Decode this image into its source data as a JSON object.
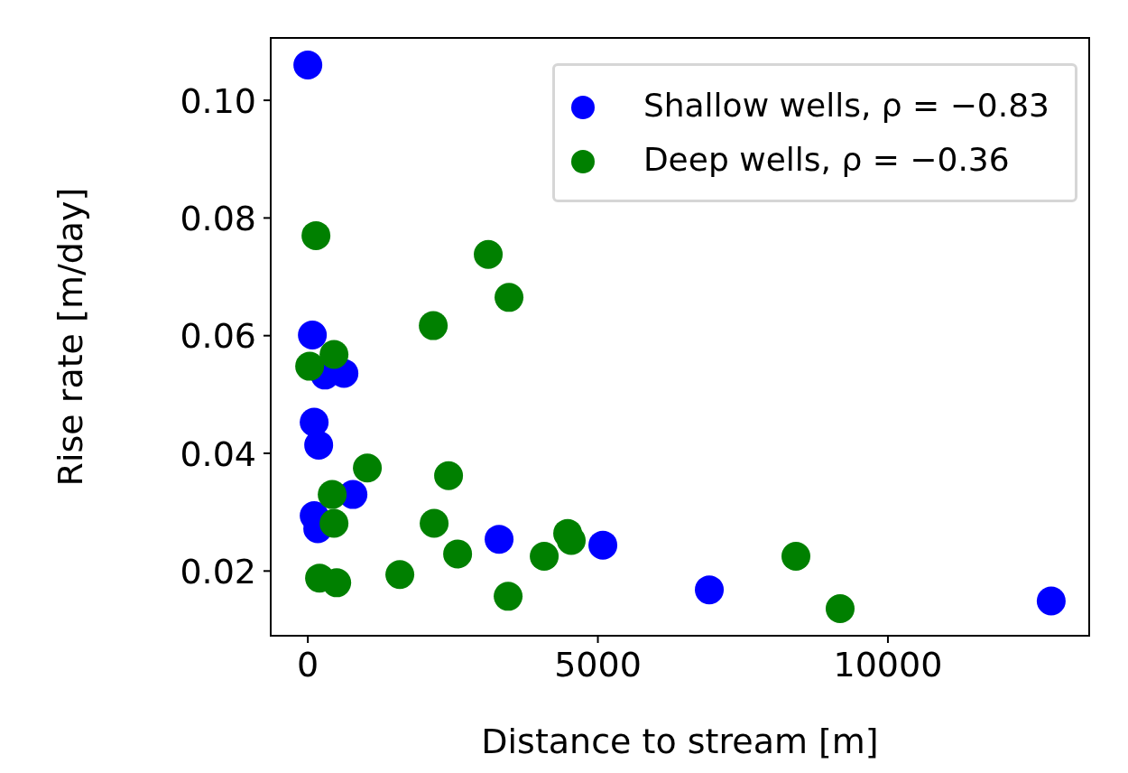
{
  "chart_data": {
    "type": "scatter",
    "xlabel": "Distance to stream [m]",
    "ylabel": "Rise rate [m/day]",
    "xlim": [
      -640,
      13470
    ],
    "xticks": [
      0,
      5000,
      10000
    ],
    "ylim": [
      0.009,
      0.1106
    ],
    "yticks": [
      0.02,
      0.04,
      0.06,
      0.08,
      {
        "value": 0.1,
        "label": "0.10"
      }
    ],
    "legend": "top right",
    "marker": "circle",
    "series": [
      {
        "name": "Shallow wells, ρ = −0.83",
        "color": "#0000ff",
        "x": [
          0,
          78,
          109,
          187,
          295,
          622,
          778,
          109,
          171,
          3297,
          5086,
          6921,
          12815
        ],
        "values": [
          0.106,
          0.0601,
          0.0453,
          0.0414,
          0.0533,
          0.0536,
          0.033,
          0.0294,
          0.0272,
          0.0254,
          0.0244,
          0.0168,
          0.0149
        ]
      },
      {
        "name": "Deep wells, ρ = −0.36",
        "color": "#008000",
        "x": [
          140,
          3110,
          3468,
          2162,
          451,
          31,
          1026,
          2426,
          420,
          451,
          2177,
          2582,
          202,
          498,
          1586,
          3453,
          4075,
          4479,
          4541,
          8414,
          9176
        ],
        "values": [
          0.077,
          0.0738,
          0.0665,
          0.0617,
          0.0568,
          0.0548,
          0.0375,
          0.0362,
          0.033,
          0.0281,
          0.0281,
          0.0229,
          0.0188,
          0.018,
          0.0194,
          0.0157,
          0.0225,
          0.0264,
          0.0252,
          0.0225,
          0.0136
        ]
      }
    ]
  }
}
